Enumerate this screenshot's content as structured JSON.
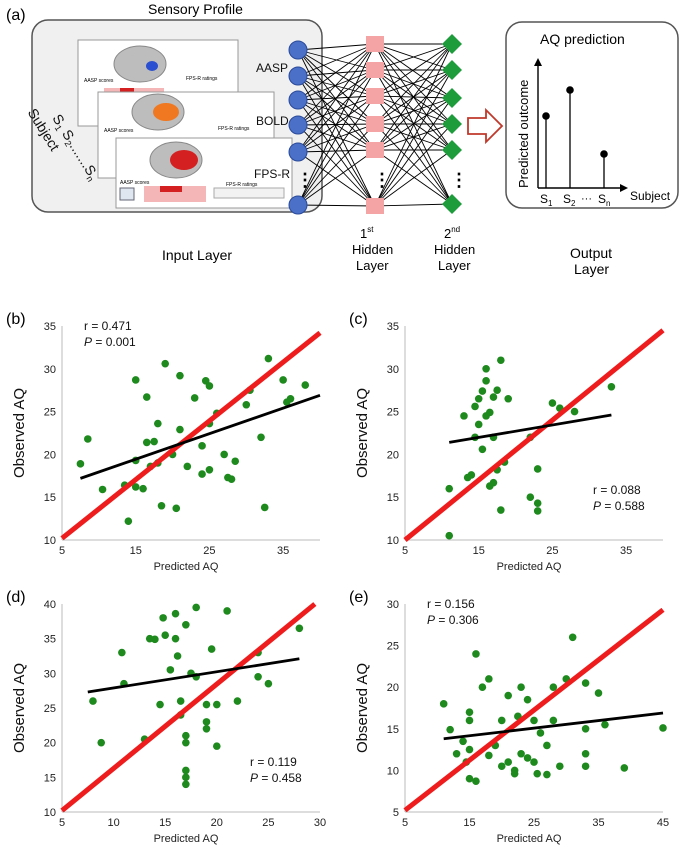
{
  "diagram": {
    "panel_letter": "(a)",
    "sensory_profile_label": "Sensory Profile",
    "input_labels": [
      "AASP",
      "BOLD",
      "FPS-R"
    ],
    "subject_label": "Subject",
    "subject_seq": [
      "S",
      "1",
      "S",
      "2",
      ".......",
      "S",
      "n"
    ],
    "thumb_labels": {
      "aasp_scores": "AASP scores",
      "fps_ratings": "FPS-R ratings"
    },
    "hidden1_label": {
      "num": "1",
      "sup": "st",
      "line2": "Hidden",
      "line3": "Layer"
    },
    "hidden2_label": {
      "num": "2",
      "sup": "nd",
      "line2": "Hidden",
      "line3": "Layer"
    },
    "input_layer_label": "Input Layer",
    "output_layer_label": {
      "line1": "Output",
      "line2": "Layer"
    },
    "prediction_box": {
      "title": "AQ prediction",
      "ylabel": "Predicted outcome",
      "xlabel": "Subject",
      "ticks": [
        {
          "s": "S",
          "sub": "1"
        },
        {
          "s": "S",
          "sub": "2"
        },
        {
          "s": "S",
          "sub": "n"
        }
      ],
      "ellipsis": "···"
    },
    "ellipsis": "⋮",
    "colors": {
      "input": "#4a70c8",
      "hidden1": "#f4a4a4",
      "hidden2": "#1e9c3c",
      "arrow": "#c0392b"
    }
  },
  "chart_data": [
    {
      "panel": "(b)",
      "type": "scatter",
      "xlabel": "Predicted AQ",
      "ylabel": "Observed AQ",
      "xlim": [
        5,
        40
      ],
      "ylim": [
        10,
        35
      ],
      "xticks": [
        5,
        15,
        25,
        35
      ],
      "yticks": [
        10,
        15,
        20,
        25,
        30,
        35
      ],
      "stats": {
        "r": "r = 0.471",
        "p_label": "P",
        "p_value": " = 0.001"
      },
      "stats_pos": "top-left",
      "fit": [
        [
          7.5,
          17.2
        ],
        [
          40,
          26.9
        ]
      ],
      "identity": [
        [
          5,
          10.2
        ],
        [
          40,
          34.2
        ]
      ],
      "points": [
        [
          7.5,
          18.9
        ],
        [
          8.5,
          21.8
        ],
        [
          10.5,
          15.9
        ],
        [
          13.5,
          16.4
        ],
        [
          14,
          12.2
        ],
        [
          15,
          16.2
        ],
        [
          15,
          19.3
        ],
        [
          15,
          28.7
        ],
        [
          16,
          16
        ],
        [
          16.5,
          26.7
        ],
        [
          16.5,
          21.4
        ],
        [
          17,
          18.6
        ],
        [
          17.5,
          21.5
        ],
        [
          18,
          23.6
        ],
        [
          18,
          19
        ],
        [
          18.5,
          14
        ],
        [
          19,
          30.6
        ],
        [
          20,
          20
        ],
        [
          20.5,
          13.7
        ],
        [
          21,
          29.2
        ],
        [
          21,
          22.9
        ],
        [
          22,
          18.6
        ],
        [
          23,
          26.6
        ],
        [
          24,
          17.7
        ],
        [
          24,
          21
        ],
        [
          24.5,
          28.6
        ],
        [
          25,
          18.2
        ],
        [
          25,
          28
        ],
        [
          25,
          23.6
        ],
        [
          26,
          24.8
        ],
        [
          27,
          20
        ],
        [
          27.5,
          17.3
        ],
        [
          28,
          17.1
        ],
        [
          28.5,
          19.2
        ],
        [
          30,
          25.8
        ],
        [
          30.5,
          27.5
        ],
        [
          32,
          22
        ],
        [
          32.5,
          13.8
        ],
        [
          33,
          31.2
        ],
        [
          35,
          28.7
        ],
        [
          35.5,
          26.1
        ],
        [
          36,
          26.5
        ],
        [
          38,
          28.1
        ]
      ],
      "colors": {
        "point": "#1e8a1e",
        "fit": "#000000",
        "identity": "#ee1c1c"
      }
    },
    {
      "panel": "(c)",
      "type": "scatter",
      "xlabel": "Predicted AQ",
      "ylabel": "Observed AQ",
      "xlim": [
        5,
        40
      ],
      "ylim": [
        10,
        35
      ],
      "xticks": [
        5,
        15,
        25,
        35
      ],
      "yticks": [
        10,
        15,
        20,
        25,
        30,
        35
      ],
      "stats": {
        "r": "r = 0.088",
        "p_label": "P",
        "p_value": " = 0.588"
      },
      "stats_pos": "bottom-right",
      "fit": [
        [
          11,
          21.4
        ],
        [
          33,
          24.6
        ]
      ],
      "identity": [
        [
          5,
          10
        ],
        [
          40,
          34.5
        ]
      ],
      "points": [
        [
          11,
          10.5
        ],
        [
          11,
          16
        ],
        [
          13,
          24.5
        ],
        [
          13.5,
          17.3
        ],
        [
          14,
          17.6
        ],
        [
          14.5,
          22
        ],
        [
          14.5,
          25.6
        ],
        [
          15,
          26.5
        ],
        [
          15,
          23.5
        ],
        [
          15.5,
          27.4
        ],
        [
          15.5,
          20.6
        ],
        [
          16,
          24.5
        ],
        [
          16,
          28.6
        ],
        [
          16,
          30
        ],
        [
          16.5,
          24.9
        ],
        [
          16.5,
          16.3
        ],
        [
          17,
          26.7
        ],
        [
          17,
          22
        ],
        [
          17,
          16.7
        ],
        [
          17.5,
          27.5
        ],
        [
          17.5,
          18.2
        ],
        [
          18,
          31
        ],
        [
          18,
          13.5
        ],
        [
          18.5,
          19.1
        ],
        [
          19,
          26.5
        ],
        [
          22,
          22
        ],
        [
          22,
          15
        ],
        [
          23,
          18.3
        ],
        [
          23,
          14.3
        ],
        [
          23,
          13.4
        ],
        [
          25,
          26
        ],
        [
          26,
          25.4
        ],
        [
          28,
          25
        ],
        [
          33,
          27.9
        ]
      ],
      "colors": {
        "point": "#1e8a1e",
        "fit": "#000000",
        "identity": "#ee1c1c"
      }
    },
    {
      "panel": "(d)",
      "type": "scatter",
      "xlabel": "Predicted AQ",
      "ylabel": "Observed AQ",
      "xlim": [
        5,
        30
      ],
      "ylim": [
        10,
        40
      ],
      "xticks": [
        5,
        10,
        15,
        20,
        25,
        30
      ],
      "yticks": [
        10,
        15,
        20,
        25,
        30,
        35,
        40
      ],
      "stats": {
        "r": "r = 0.119",
        "p_label": "P",
        "p_value": " = 0.458"
      },
      "stats_pos": "bottom-right",
      "fit": [
        [
          7.5,
          27.3
        ],
        [
          28,
          32.1
        ]
      ],
      "identity": [
        [
          5,
          10.2
        ],
        [
          29.5,
          40
        ]
      ],
      "points": [
        [
          8,
          26
        ],
        [
          8.8,
          20
        ],
        [
          10.8,
          33
        ],
        [
          11,
          28.5
        ],
        [
          13,
          20.5
        ],
        [
          13.5,
          35
        ],
        [
          14,
          34.9
        ],
        [
          14.5,
          25.5
        ],
        [
          14.8,
          38
        ],
        [
          15,
          35.5
        ],
        [
          15.5,
          30.5
        ],
        [
          16,
          38.6
        ],
        [
          16,
          35
        ],
        [
          16.2,
          32.5
        ],
        [
          16.5,
          26
        ],
        [
          16.5,
          24
        ],
        [
          17,
          37
        ],
        [
          17,
          21
        ],
        [
          17,
          20
        ],
        [
          17,
          16
        ],
        [
          17,
          15
        ],
        [
          17,
          14
        ],
        [
          17.5,
          30
        ],
        [
          18,
          39.5
        ],
        [
          18,
          29.5
        ],
        [
          19,
          25.5
        ],
        [
          19,
          23
        ],
        [
          19,
          22
        ],
        [
          19.5,
          33.5
        ],
        [
          20,
          25.5
        ],
        [
          20,
          19.5
        ],
        [
          21,
          39
        ],
        [
          22,
          26
        ],
        [
          24,
          33
        ],
        [
          24,
          29.5
        ],
        [
          25,
          28.5
        ],
        [
          28,
          36.5
        ]
      ],
      "colors": {
        "point": "#1e8a1e",
        "fit": "#000000",
        "identity": "#ee1c1c"
      }
    },
    {
      "panel": "(e)",
      "type": "scatter",
      "xlabel": "Predicted AQ",
      "ylabel": "Observed AQ",
      "xlim": [
        5,
        45
      ],
      "ylim": [
        5,
        30
      ],
      "xticks": [
        5,
        15,
        25,
        35,
        45
      ],
      "yticks": [
        5,
        10,
        15,
        20,
        25,
        30
      ],
      "stats": {
        "r": "r = 0.156",
        "p_label": "P",
        "p_value": " = 0.306"
      },
      "stats_pos": "top-left",
      "fit": [
        [
          11,
          13.8
        ],
        [
          45,
          16.9
        ]
      ],
      "identity": [
        [
          5,
          5.2
        ],
        [
          45,
          29.3
        ]
      ],
      "points": [
        [
          11,
          18
        ],
        [
          12,
          14.9
        ],
        [
          13,
          12
        ],
        [
          14,
          13.5
        ],
        [
          14.5,
          11
        ],
        [
          15,
          17
        ],
        [
          15,
          16
        ],
        [
          15,
          12.5
        ],
        [
          15,
          9
        ],
        [
          16,
          24
        ],
        [
          16,
          8.7
        ],
        [
          17,
          20
        ],
        [
          18,
          21
        ],
        [
          18,
          11.8
        ],
        [
          19,
          13
        ],
        [
          20,
          16
        ],
        [
          20,
          10.5
        ],
        [
          21,
          19
        ],
        [
          21,
          11
        ],
        [
          22,
          10
        ],
        [
          22,
          9.6
        ],
        [
          22.5,
          16.5
        ],
        [
          23,
          20
        ],
        [
          23,
          12
        ],
        [
          24,
          18.5
        ],
        [
          24,
          11.5
        ],
        [
          25,
          16
        ],
        [
          25,
          11
        ],
        [
          25.5,
          9.6
        ],
        [
          26,
          14.5
        ],
        [
          27,
          13
        ],
        [
          27,
          9.5
        ],
        [
          28,
          20
        ],
        [
          28,
          16
        ],
        [
          29,
          10.5
        ],
        [
          30,
          21
        ],
        [
          31,
          26
        ],
        [
          33,
          20.5
        ],
        [
          33,
          15
        ],
        [
          33,
          12
        ],
        [
          33,
          10.5
        ],
        [
          35,
          19.3
        ],
        [
          36,
          15.5
        ],
        [
          39,
          10.3
        ],
        [
          45,
          15.1
        ]
      ],
      "colors": {
        "point": "#1e8a1e",
        "fit": "#000000",
        "identity": "#ee1c1c"
      }
    }
  ]
}
